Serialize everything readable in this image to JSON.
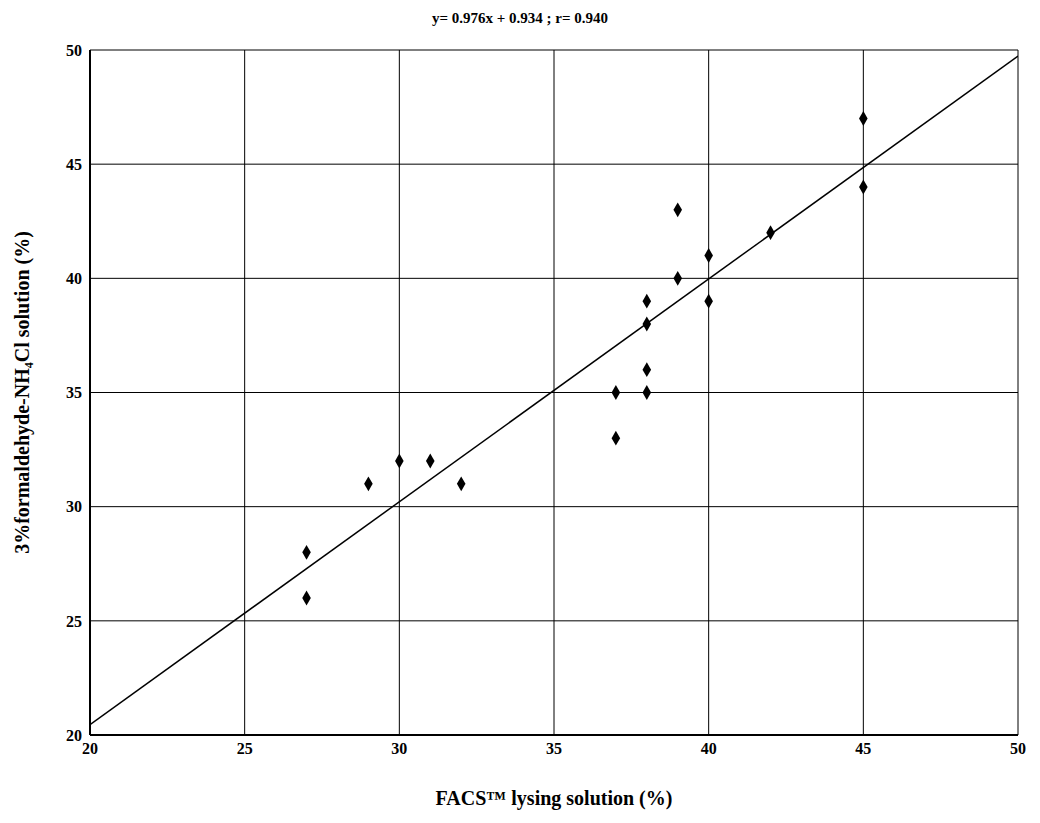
{
  "chart_data": {
    "type": "scatter",
    "title": "y= 0.976x + 0.934 ; r= 0.940",
    "x_label": "FACS™ lysing solution (%)",
    "y_label": "3%formaldehyde-NH₄Cl solution (%)",
    "x": [
      27,
      27,
      29,
      30,
      31,
      32,
      37,
      37,
      38,
      38,
      38,
      38,
      39,
      39,
      40,
      40,
      42,
      45,
      45
    ],
    "values": [
      28,
      26,
      31,
      32,
      32,
      31,
      35,
      33,
      39,
      38,
      36,
      35,
      43,
      40,
      41,
      39,
      42,
      47,
      44
    ],
    "fit": {
      "slope": 0.976,
      "intercept": 0.934
    },
    "color": "#000000",
    "marker": "diamond",
    "xlim": [
      20,
      50
    ],
    "xticks": [
      20,
      25,
      30,
      35,
      40,
      45,
      50
    ],
    "ylim": [
      20,
      50
    ],
    "yticks": [
      20,
      25,
      30,
      35,
      40,
      45,
      50
    ],
    "grid": true
  }
}
